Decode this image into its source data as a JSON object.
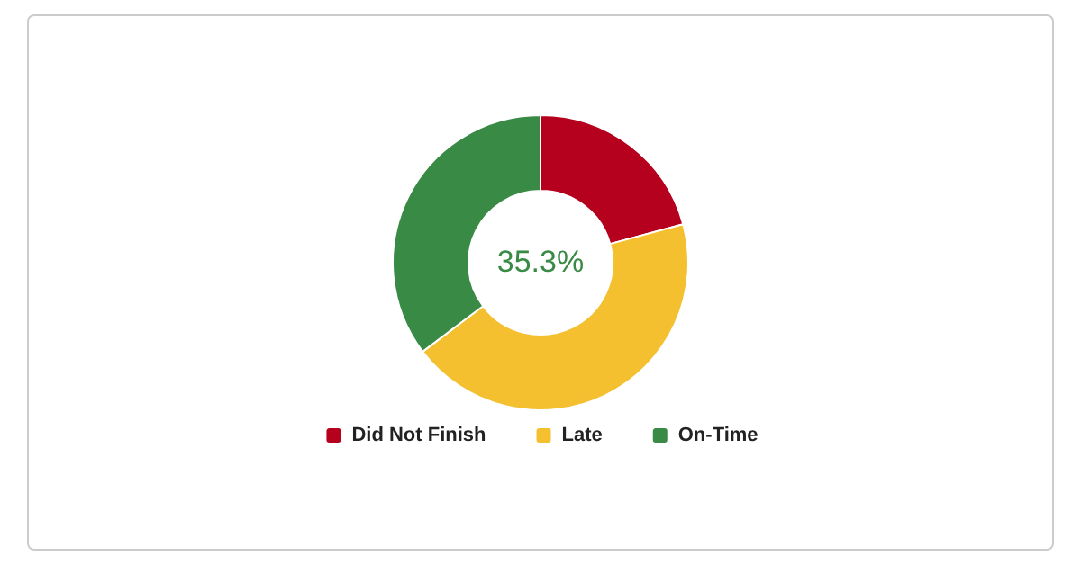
{
  "chart_data": {
    "type": "donut",
    "categories": [
      "Did Not Finish",
      "Late",
      "On-Time"
    ],
    "values": [
      20.8,
      43.9,
      35.3
    ],
    "colors": [
      "#b5001e",
      "#f4c030",
      "#388a45"
    ],
    "annotations": [
      "35.3%"
    ],
    "legend": "bottom"
  }
}
